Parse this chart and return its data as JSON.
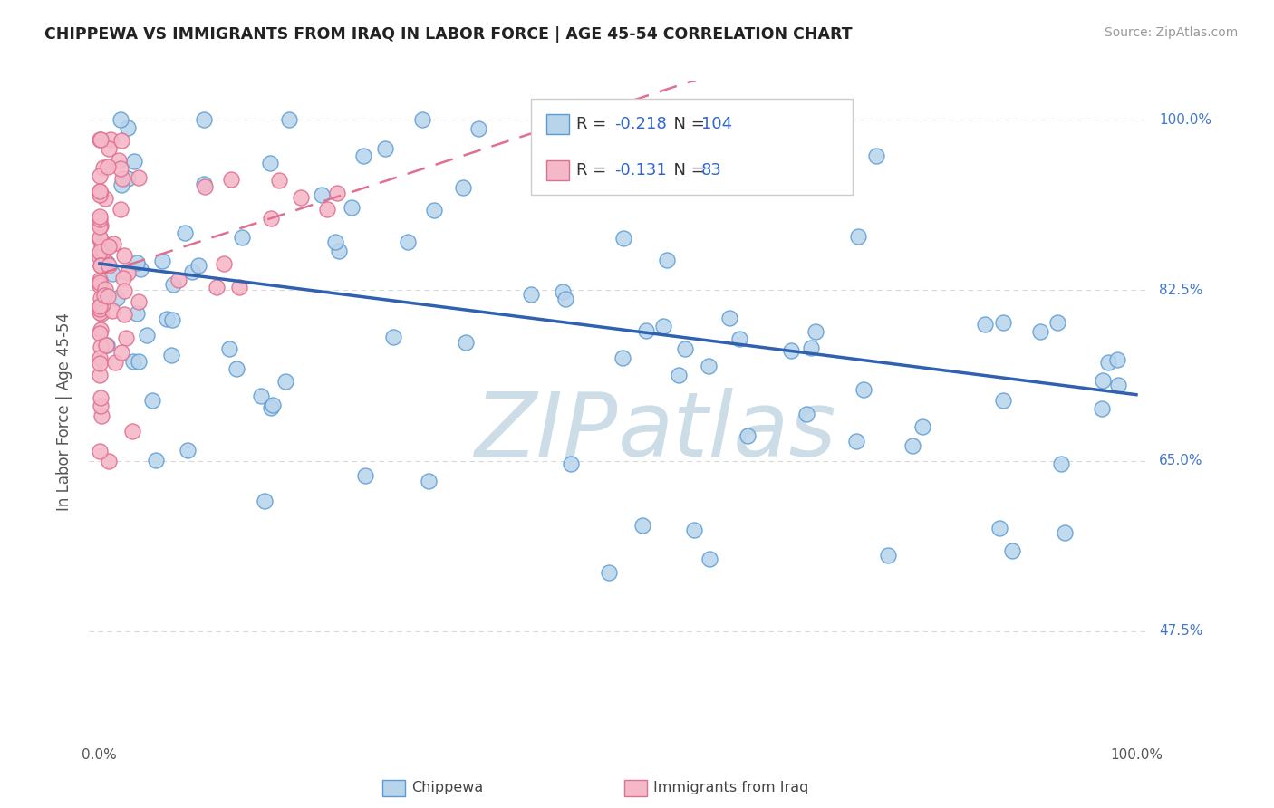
{
  "title": "CHIPPEWA VS IMMIGRANTS FROM IRAQ IN LABOR FORCE | AGE 45-54 CORRELATION CHART",
  "source": "Source: ZipAtlas.com",
  "ylabel": "In Labor Force | Age 45-54",
  "ytick_labels": [
    "100.0%",
    "82.5%",
    "65.0%",
    "47.5%"
  ],
  "ytick_values": [
    1.0,
    0.825,
    0.65,
    0.475
  ],
  "xlim": [
    -0.01,
    1.01
  ],
  "ylim": [
    0.36,
    1.04
  ],
  "legend_R1": "-0.218",
  "legend_N1": "104",
  "legend_R2": "-0.131",
  "legend_N2": "83",
  "color_chippewa_fill": "#b8d4eb",
  "color_chippewa_edge": "#5b9bd5",
  "color_iraq_fill": "#f5b8c8",
  "color_iraq_edge": "#e07090",
  "color_line_chippewa": "#3060b0",
  "color_line_iraq": "#e07090",
  "color_rn_value": "#3366cc",
  "watermark_color": "#ccdde8",
  "grid_color": "#d8d8d8",
  "background_color": "#ffffff",
  "title_color": "#222222",
  "source_color": "#999999",
  "axis_label_color": "#555555",
  "ytick_color": "#4477cc",
  "seed": 77
}
